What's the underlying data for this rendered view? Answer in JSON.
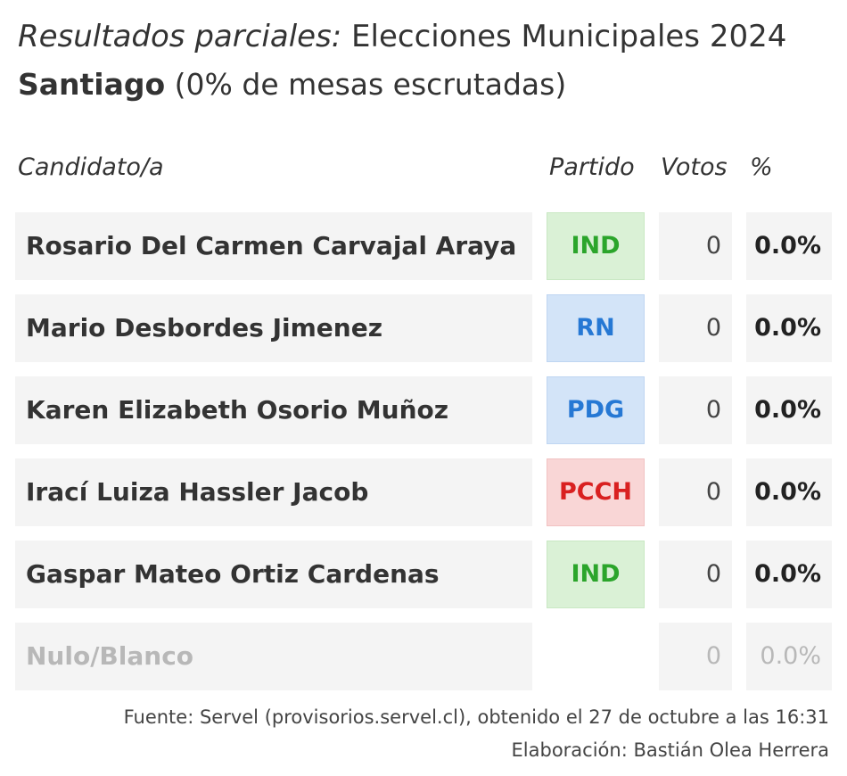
{
  "title": {
    "italic_part": "Resultados parciales:",
    "rest": " Elecciones Municipales 2024"
  },
  "subtitle": {
    "bold_part": "Santiago",
    "rest": " (0% de mesas escrutadas)"
  },
  "colors": {
    "IND": {
      "text": "#2ba52b",
      "bg": "#daf1d6",
      "border": "#c9e8c3"
    },
    "RN": {
      "text": "#2678d4",
      "bg": "#d3e4f8",
      "border": "#bfd6f2"
    },
    "PDG": {
      "text": "#2678d4",
      "bg": "#d3e4f8",
      "border": "#bfd6f2"
    },
    "PCCH": {
      "text": "#d92020",
      "bg": "#f9d6d6",
      "border": "#f1c2c2"
    },
    "muted_text": "#b8b8b8",
    "cell_bg": "#f4f4f4"
  },
  "chart_data": {
    "type": "table",
    "columns": [
      "Candidato/a",
      "Partido",
      "Votos",
      "%"
    ],
    "rows": [
      {
        "candidate": "Rosario Del Carmen Carvajal Araya",
        "party": "IND",
        "votes": "0",
        "percent": "0.0%"
      },
      {
        "candidate": "Mario Desbordes Jimenez",
        "party": "RN",
        "votes": "0",
        "percent": "0.0%"
      },
      {
        "candidate": "Karen Elizabeth Osorio Muñoz",
        "party": "PDG",
        "votes": "0",
        "percent": "0.0%"
      },
      {
        "candidate": "Irací Luiza Hassler Jacob",
        "party": "PCCH",
        "votes": "0",
        "percent": "0.0%"
      },
      {
        "candidate": "Gaspar Mateo Ortiz Cardenas",
        "party": "IND",
        "votes": "0",
        "percent": "0.0%"
      },
      {
        "candidate": "Nulo/Blanco",
        "party": "",
        "votes": "0",
        "percent": "0.0%",
        "muted": true
      }
    ]
  },
  "footer": {
    "source": "Fuente: Servel (provisorios.servel.cl), obtenido el 27 de octubre a las 16:31",
    "author": "Elaboración: Bastián Olea Herrera"
  }
}
